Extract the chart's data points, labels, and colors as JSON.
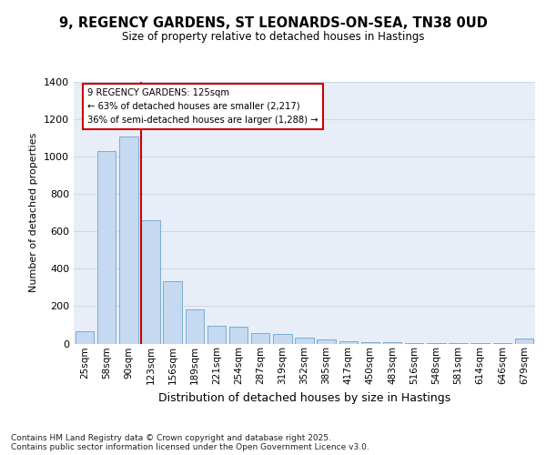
{
  "title": "9, REGENCY GARDENS, ST LEONARDS-ON-SEA, TN38 0UD",
  "subtitle": "Size of property relative to detached houses in Hastings",
  "xlabel": "Distribution of detached houses by size in Hastings",
  "ylabel": "Number of detached properties",
  "bar_color": "#c5d9f0",
  "bar_edge_color": "#7aadd4",
  "background_color": "#e8eef8",
  "grid_color": "#d0d8e8",
  "categories": [
    "25sqm",
    "58sqm",
    "90sqm",
    "123sqm",
    "156sqm",
    "189sqm",
    "221sqm",
    "254sqm",
    "287sqm",
    "319sqm",
    "352sqm",
    "385sqm",
    "417sqm",
    "450sqm",
    "483sqm",
    "516sqm",
    "548sqm",
    "581sqm",
    "614sqm",
    "646sqm",
    "679sqm"
  ],
  "values": [
    65,
    1030,
    1110,
    660,
    335,
    185,
    95,
    90,
    55,
    50,
    30,
    20,
    10,
    8,
    5,
    3,
    2,
    1,
    1,
    1,
    25
  ],
  "ylim": [
    0,
    1400
  ],
  "yticks": [
    0,
    200,
    400,
    600,
    800,
    1000,
    1200,
    1400
  ],
  "property_line_x": 3,
  "red_line_color": "#cc0000",
  "annotation_line1": "9 REGENCY GARDENS: 125sqm",
  "annotation_line2": "← 63% of detached houses are smaller (2,217)",
  "annotation_line3": "36% of semi-detached houses are larger (1,288) →",
  "footer_line1": "Contains HM Land Registry data © Crown copyright and database right 2025.",
  "footer_line2": "Contains public sector information licensed under the Open Government Licence v3.0."
}
